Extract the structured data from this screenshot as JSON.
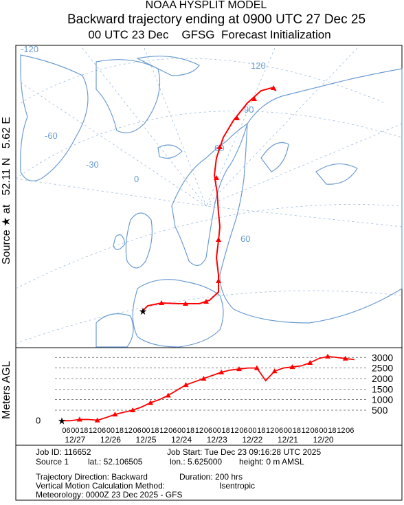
{
  "header": {
    "line1": "NOAA HYSPLIT MODEL",
    "line2": "Backward trajectory ending at 0900 UTC 27 Dec 25",
    "line3": "00 UTC 23 Dec    GFSG  Forecast Initialization"
  },
  "map": {
    "source_label": "Source ★ at   52.11 N   5.62 E",
    "graticule_labels": [
      "-120",
      "120",
      "90",
      "60",
      "-60",
      "-30",
      "0",
      "60"
    ]
  },
  "chart_data": {
    "type": "line",
    "y_label": "Meters AGL",
    "color": "#ff0000",
    "values": [
      0,
      0,
      60,
      60,
      20,
      150,
      300,
      400,
      500,
      650,
      850,
      1000,
      1200,
      1450,
      1700,
      1850,
      2000,
      2150,
      2300,
      2400,
      2450,
      2500,
      2500,
      1900,
      2350,
      2500,
      2550,
      2600,
      2750,
      2950,
      3050,
      3000,
      2950,
      2900
    ],
    "ylim": [
      -1000,
      3400
    ],
    "yticks": [
      0,
      500,
      1000,
      1500,
      2000,
      2500,
      3000
    ],
    "x_tick_labels": [
      "06",
      "00",
      "18",
      "12",
      "06",
      "00",
      "18",
      "12",
      "06",
      "00",
      "18",
      "12",
      "06",
      "00",
      "18",
      "12",
      "06",
      "00",
      "18",
      "12",
      "06",
      "00",
      "18",
      "12",
      "06",
      "00",
      "18",
      "12",
      "06",
      "00",
      "18",
      "12",
      "06"
    ],
    "date_labels": [
      "12/27",
      "12/26",
      "12/25",
      "12/24",
      "12/23",
      "12/22",
      "12/21",
      "12/20"
    ]
  },
  "footer": {
    "job_id": "Job ID: 116652",
    "job_start": "Job Start: Tue Dec 23 09:16:28 UTC 2025",
    "source": "Source 1",
    "lat": "lat.: 52.106505",
    "lon": "lon.: 5.625000",
    "height": "height: 0 m AMSL",
    "direction": "Trajectory Direction: Backward",
    "duration": "Duration: 200 hrs",
    "method": "Vertical Motion Calculation Method:",
    "method_value": "Isentropic",
    "meteorology": "Meteorology: 0000Z 23 Dec 2025 - GFS"
  }
}
